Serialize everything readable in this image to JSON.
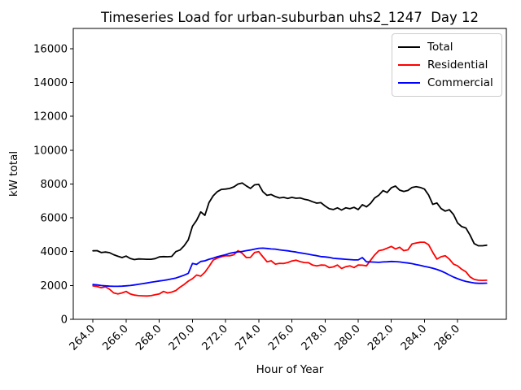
{
  "figure": {
    "background": "#ffffff"
  },
  "chart_data": {
    "type": "line",
    "title": "Timeseries Load for urban-suburban uhs2_1247  Day 12",
    "xlabel": "Hour of Year",
    "ylabel": "kW total",
    "grid": false,
    "legend_position": "upper right",
    "xlim": [
      262.81,
      288.94
    ],
    "ylim": [
      0,
      17200
    ],
    "x_tick_values": [
      264,
      266,
      268,
      270,
      272,
      274,
      276,
      278,
      280,
      282,
      284,
      286
    ],
    "x_tick_labels": [
      "264.0",
      "266.0",
      "268.0",
      "270.0",
      "272.0",
      "274.0",
      "276.0",
      "278.0",
      "280.0",
      "282.0",
      "284.0",
      "286.0"
    ],
    "y_tick_values": [
      0,
      2000,
      4000,
      6000,
      8000,
      10000,
      12000,
      14000,
      16000
    ],
    "y_tick_labels": [
      "0",
      "2000",
      "4000",
      "6000",
      "8000",
      "10000",
      "12000",
      "14000",
      "16000"
    ],
    "hours": [
      264.0,
      264.25,
      264.5,
      264.75,
      265.0,
      265.25,
      265.5,
      265.75,
      266.0,
      266.25,
      266.5,
      266.75,
      267.0,
      267.25,
      267.5,
      267.75,
      268.0,
      268.25,
      268.5,
      268.75,
      269.0,
      269.25,
      269.5,
      269.75,
      270.0,
      270.25,
      270.5,
      270.75,
      271.0,
      271.25,
      271.5,
      271.75,
      272.0,
      272.25,
      272.5,
      272.75,
      273.0,
      273.25,
      273.5,
      273.75,
      274.0,
      274.25,
      274.5,
      274.75,
      275.0,
      275.25,
      275.5,
      275.75,
      276.0,
      276.25,
      276.5,
      276.75,
      277.0,
      277.25,
      277.5,
      277.75,
      278.0,
      278.25,
      278.5,
      278.75,
      279.0,
      279.25,
      279.5,
      279.75,
      280.0,
      280.25,
      280.5,
      280.75,
      281.0,
      281.25,
      281.5,
      281.75,
      282.0,
      282.25,
      282.5,
      282.75,
      283.0,
      283.25,
      283.5,
      283.75,
      284.0,
      284.25,
      284.5,
      284.75,
      285.0,
      285.25,
      285.5,
      285.75,
      286.0,
      286.25,
      286.5,
      286.75,
      287.0,
      287.25,
      287.5,
      287.75
    ],
    "series": [
      {
        "name": "Total",
        "color": "#000000",
        "values": [
          4050,
          4060,
          3950,
          3980,
          3940,
          3820,
          3730,
          3650,
          3740,
          3600,
          3530,
          3570,
          3560,
          3550,
          3550,
          3590,
          3690,
          3710,
          3700,
          3720,
          4000,
          4100,
          4350,
          4700,
          5500,
          5850,
          6350,
          6150,
          6900,
          7300,
          7550,
          7680,
          7700,
          7740,
          7830,
          8000,
          8060,
          7890,
          7740,
          7950,
          7980,
          7550,
          7330,
          7380,
          7260,
          7180,
          7210,
          7150,
          7210,
          7160,
          7180,
          7100,
          7050,
          6950,
          6870,
          6900,
          6700,
          6540,
          6490,
          6590,
          6460,
          6590,
          6540,
          6620,
          6490,
          6780,
          6650,
          6860,
          7180,
          7340,
          7610,
          7500,
          7780,
          7880,
          7640,
          7560,
          7620,
          7800,
          7840,
          7800,
          7700,
          7350,
          6800,
          6880,
          6550,
          6400,
          6480,
          6200,
          5700,
          5480,
          5400,
          4980,
          4480,
          4350,
          4350,
          4380
        ]
      },
      {
        "name": "Residential",
        "color": "#ff0000",
        "values": [
          1980,
          1940,
          1870,
          1920,
          1780,
          1560,
          1500,
          1560,
          1650,
          1500,
          1430,
          1400,
          1390,
          1380,
          1400,
          1450,
          1500,
          1650,
          1560,
          1610,
          1700,
          1900,
          2060,
          2260,
          2400,
          2620,
          2550,
          2780,
          3120,
          3500,
          3620,
          3700,
          3760,
          3750,
          3820,
          4060,
          3900,
          3650,
          3660,
          3950,
          4000,
          3700,
          3400,
          3460,
          3260,
          3310,
          3300,
          3360,
          3450,
          3500,
          3410,
          3360,
          3350,
          3210,
          3160,
          3210,
          3200,
          3060,
          3100,
          3210,
          3010,
          3110,
          3160,
          3060,
          3210,
          3200,
          3160,
          3500,
          3810,
          4060,
          4110,
          4210,
          4310,
          4160,
          4260,
          4060,
          4110,
          4460,
          4510,
          4560,
          4560,
          4410,
          3960,
          3560,
          3700,
          3760,
          3560,
          3260,
          3160,
          2960,
          2810,
          2510,
          2360,
          2310,
          2300,
          2310
        ]
      },
      {
        "name": "Commercial",
        "color": "#0000ff",
        "values": [
          2060,
          2030,
          2000,
          1980,
          1960,
          1950,
          1950,
          1960,
          1980,
          2000,
          2030,
          2070,
          2110,
          2150,
          2190,
          2230,
          2270,
          2300,
          2340,
          2390,
          2440,
          2520,
          2610,
          2720,
          3300,
          3250,
          3420,
          3460,
          3550,
          3620,
          3700,
          3760,
          3820,
          3900,
          3950,
          3990,
          4010,
          4060,
          4100,
          4150,
          4200,
          4210,
          4190,
          4160,
          4150,
          4110,
          4080,
          4050,
          4010,
          3980,
          3930,
          3890,
          3850,
          3800,
          3760,
          3710,
          3690,
          3660,
          3610,
          3590,
          3570,
          3550,
          3530,
          3510,
          3510,
          3650,
          3400,
          3390,
          3380,
          3370,
          3390,
          3400,
          3420,
          3410,
          3390,
          3360,
          3330,
          3290,
          3240,
          3190,
          3130,
          3080,
          3020,
          2950,
          2860,
          2750,
          2620,
          2500,
          2400,
          2310,
          2240,
          2190,
          2150,
          2130,
          2130,
          2140
        ]
      }
    ]
  }
}
